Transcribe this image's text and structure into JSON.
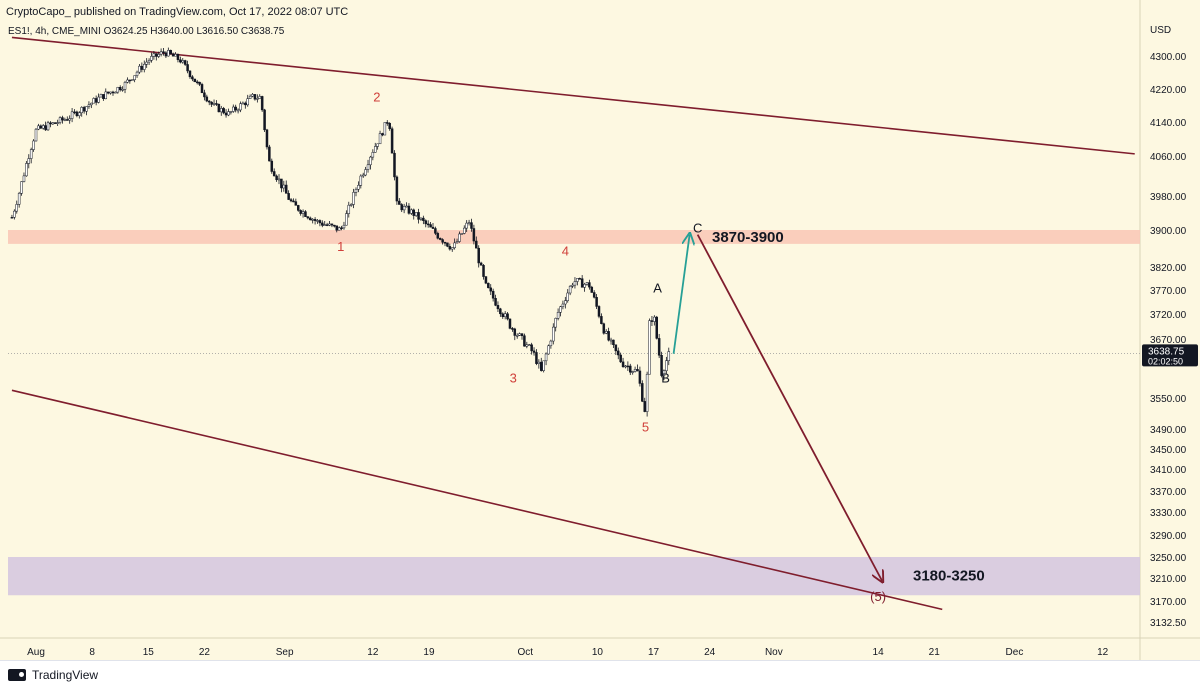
{
  "header": {
    "publisher_line": "CryptoCapo_ published on TradingView.com, Oct 17, 2022 08:07 UTC",
    "ohlc_line": "ES1!, 4h, CME_MINI  O3624.25  H3640.00  L3616.50  C3638.75"
  },
  "footer": {
    "brand": "TradingView"
  },
  "colors": {
    "background": "#fdf8e1",
    "channel_line": "#7f1d2d",
    "resistance_zone": "#f9c9b8",
    "target_zone": "#d6c8e0",
    "wave_label": "#d0403a",
    "projection_up": "#27a096",
    "projection_down": "#7f1d2d",
    "candle": "#131722"
  },
  "chart_data": {
    "type": "candlestick",
    "symbol": "ES1!",
    "timeframe": "4h",
    "currency_label": "USD",
    "ylim": [
      3100,
      4365
    ],
    "y_ticks": [
      4300,
      4220,
      4140,
      4060,
      3980,
      3900,
      3820,
      3770,
      3720,
      3670,
      3620,
      3550,
      3490,
      3450,
      3410,
      3370,
      3330,
      3290,
      3250,
      3210,
      3170,
      3132.5
    ],
    "y_tick_labels": [
      "4300.00",
      "4220.00",
      "4140.00",
      "4060.00",
      "3980.00",
      "3900.00",
      "3820.00",
      "3770.00",
      "3720.00",
      "3670.00",
      "",
      "3550.00",
      "3490.00",
      "3450.00",
      "3410.00",
      "3370.00",
      "3330.00",
      "3290.00",
      "3250.00",
      "3210.00",
      "3170.00",
      "3132.50"
    ],
    "x_ticks": [
      {
        "label": "Aug",
        "day": 0
      },
      {
        "label": "8",
        "day": 7
      },
      {
        "label": "15",
        "day": 14
      },
      {
        "label": "22",
        "day": 21
      },
      {
        "label": "Sep",
        "day": 31
      },
      {
        "label": "12",
        "day": 42
      },
      {
        "label": "19",
        "day": 49
      },
      {
        "label": "Oct",
        "day": 61
      },
      {
        "label": "10",
        "day": 70
      },
      {
        "label": "17",
        "day": 77
      },
      {
        "label": "24",
        "day": 84
      },
      {
        "label": "Nov",
        "day": 92
      },
      {
        "label": "14",
        "day": 105
      },
      {
        "label": "21",
        "day": 112
      },
      {
        "label": "Dec",
        "day": 122
      },
      {
        "label": "12",
        "day": 133
      }
    ],
    "price_path": [
      {
        "day": -3,
        "price": 3930
      },
      {
        "day": 0,
        "price": 4120
      },
      {
        "day": 4,
        "price": 4150
      },
      {
        "day": 8,
        "price": 4200
      },
      {
        "day": 11,
        "price": 4230
      },
      {
        "day": 14,
        "price": 4290
      },
      {
        "day": 16,
        "price": 4310
      },
      {
        "day": 18,
        "price": 4290
      },
      {
        "day": 22,
        "price": 4180
      },
      {
        "day": 24,
        "price": 4160
      },
      {
        "day": 27,
        "price": 4200
      },
      {
        "day": 28,
        "price": 4200
      },
      {
        "day": 29,
        "price": 4050
      },
      {
        "day": 32,
        "price": 3960
      },
      {
        "day": 35,
        "price": 3920
      },
      {
        "day": 38,
        "price": 3900
      },
      {
        "day": 40,
        "price": 4000
      },
      {
        "day": 43,
        "price": 4110
      },
      {
        "day": 44,
        "price": 4150
      },
      {
        "day": 45,
        "price": 3960
      },
      {
        "day": 47,
        "price": 3940
      },
      {
        "day": 50,
        "price": 3890
      },
      {
        "day": 52,
        "price": 3860
      },
      {
        "day": 54,
        "price": 3920
      },
      {
        "day": 56,
        "price": 3780
      },
      {
        "day": 59,
        "price": 3700
      },
      {
        "day": 62,
        "price": 3640
      },
      {
        "day": 63,
        "price": 3600
      },
      {
        "day": 65,
        "price": 3720
      },
      {
        "day": 67,
        "price": 3790
      },
      {
        "day": 69,
        "price": 3780
      },
      {
        "day": 71,
        "price": 3680
      },
      {
        "day": 73,
        "price": 3620
      },
      {
        "day": 75,
        "price": 3600
      },
      {
        "day": 76,
        "price": 3520
      },
      {
        "day": 76.5,
        "price": 3700
      },
      {
        "day": 77,
        "price": 3720
      },
      {
        "day": 78,
        "price": 3600
      },
      {
        "day": 79,
        "price": 3638.75
      }
    ],
    "last_price": {
      "value": 3638.75,
      "label": "3638.75",
      "countdown": "02:02:50"
    },
    "zones": [
      {
        "name": "resistance",
        "low": 3870,
        "high": 3900,
        "label": "3870-3900"
      },
      {
        "name": "target",
        "low": 3180,
        "high": 3250,
        "label": "3180-3250"
      }
    ],
    "channel_lines": [
      {
        "name": "upper",
        "points": [
          {
            "day": -3,
            "price": 4345
          },
          {
            "day": 137,
            "price": 4065
          }
        ]
      },
      {
        "name": "lower",
        "points": [
          {
            "day": -3,
            "price": 3565
          },
          {
            "day": 113,
            "price": 3155
          }
        ]
      }
    ],
    "projections": [
      {
        "name": "up-to-C",
        "color": "#27a096",
        "from": {
          "day": 79.5,
          "price": 3638
        },
        "to": {
          "day": 81.5,
          "price": 3890
        }
      },
      {
        "name": "down-to-target",
        "color": "#7f1d2d",
        "from": {
          "day": 82.5,
          "price": 3890
        },
        "to": {
          "day": 105.5,
          "price": 3205
        }
      }
    ],
    "wave_labels": [
      {
        "text": "2",
        "day": 42.5,
        "price": 4190,
        "color": "#d0403a"
      },
      {
        "text": "1",
        "day": 38,
        "price": 3855,
        "color": "#d0403a"
      },
      {
        "text": "4",
        "day": 66,
        "price": 3845,
        "color": "#d0403a"
      },
      {
        "text": "3",
        "day": 59.5,
        "price": 3580,
        "color": "#d0403a"
      },
      {
        "text": "5",
        "day": 76,
        "price": 3485,
        "color": "#d0403a"
      },
      {
        "text": "A",
        "day": 77.5,
        "price": 3765,
        "color": "#131722"
      },
      {
        "text": "B",
        "day": 78.5,
        "price": 3580,
        "color": "#131722"
      },
      {
        "text": "C",
        "day": 82.5,
        "price": 3895,
        "color": "#131722"
      },
      {
        "text": "(5)",
        "day": 105,
        "price": 3170,
        "color": "#7f1d2d"
      }
    ]
  }
}
